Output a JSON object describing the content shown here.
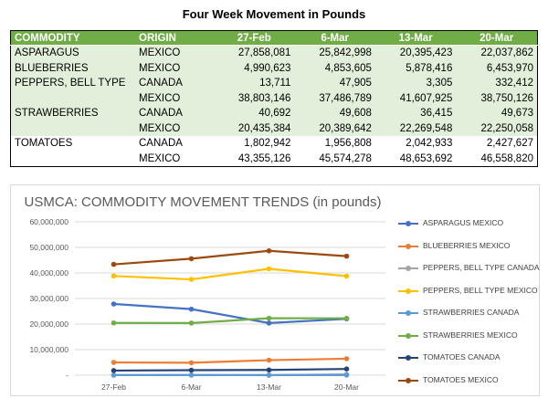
{
  "table": {
    "title": "Four Week Movement in Pounds",
    "headers": [
      "COMMODITY",
      "ORIGIN",
      "27-Feb",
      "6-Mar",
      "13-Mar",
      "20-Mar"
    ],
    "rows": [
      [
        "ASPARAGUS",
        "MEXICO",
        "27,858,081",
        "25,842,998",
        "20,395,423",
        "22,037,862"
      ],
      [
        "BLUEBERRIES",
        "MEXICO",
        "4,990,623",
        "4,853,605",
        "5,878,416",
        "6,453,970"
      ],
      [
        "PEPPERS, BELL TYPE",
        "CANADA",
        "13,711",
        "47,905",
        "3,305",
        "332,412"
      ],
      [
        "",
        "MEXICO",
        "38,803,146",
        "37,486,789",
        "41,607,925",
        "38,750,126"
      ],
      [
        "STRAWBERRIES",
        "CANADA",
        "40,692",
        "49,608",
        "36,415",
        "49,673"
      ],
      [
        "",
        "MEXICO",
        "20,435,384",
        "20,389,642",
        "22,269,548",
        "22,250,058"
      ],
      [
        "TOMATOES",
        "CANADA",
        "1,802,942",
        "1,956,808",
        "2,042,933",
        "2,427,627"
      ],
      [
        "",
        "MEXICO",
        "43,355,126",
        "45,574,278",
        "48,653,692",
        "46,558,820"
      ]
    ]
  },
  "chart_data": {
    "type": "line",
    "title": "USMCA: COMMODITY MOVEMENT TRENDS (in pounds)",
    "categories": [
      "27-Feb",
      "6-Mar",
      "13-Mar",
      "20-Mar"
    ],
    "ylim": [
      0,
      60000000
    ],
    "yticks": [
      0,
      10000000,
      20000000,
      30000000,
      40000000,
      50000000,
      60000000
    ],
    "ytick_labels": [
      "-",
      "10,000,000",
      "20,000,000",
      "30,000,000",
      "40,000,000",
      "50,000,000",
      "60,000,000"
    ],
    "grid": true,
    "legend_position": "right",
    "series": [
      {
        "name": "ASPARAGUS MEXICO",
        "color": "#4472c4",
        "values": [
          27858081,
          25842998,
          20395423,
          22037862
        ]
      },
      {
        "name": "BLUEBERRIES MEXICO",
        "color": "#ed7d31",
        "values": [
          4990623,
          4853605,
          5878416,
          6453970
        ]
      },
      {
        "name": "PEPPERS, BELL TYPE CANADA",
        "color": "#a5a5a5",
        "values": [
          13711,
          47905,
          3305,
          332412
        ]
      },
      {
        "name": "PEPPERS, BELL TYPE MEXICO",
        "color": "#ffc000",
        "values": [
          38803146,
          37486789,
          41607925,
          38750126
        ]
      },
      {
        "name": "STRAWBERRIES CANADA",
        "color": "#5b9bd5",
        "values": [
          40692,
          49608,
          36415,
          49673
        ]
      },
      {
        "name": "STRAWBERRIES MEXICO",
        "color": "#70ad47",
        "values": [
          20435384,
          20389642,
          22269548,
          22250058
        ]
      },
      {
        "name": "TOMATOES CANADA",
        "color": "#264478",
        "values": [
          1802942,
          1956808,
          2042933,
          2427627
        ]
      },
      {
        "name": "TOMATOES MEXICO",
        "color": "#9e480e",
        "values": [
          43355126,
          45574278,
          48653692,
          46558820
        ]
      }
    ]
  }
}
